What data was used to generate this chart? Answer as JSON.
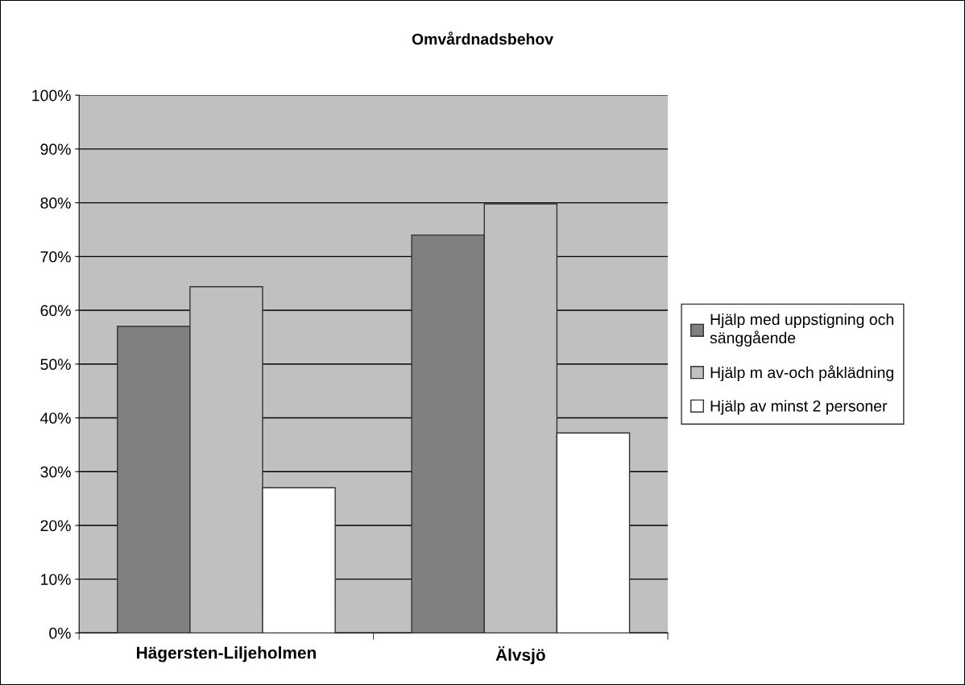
{
  "chart_data": {
    "type": "bar",
    "title": "Omvårdnadsbehov",
    "categories": [
      "Hägersten-Liljeholmen",
      "Älvsjö"
    ],
    "series": [
      {
        "name": "Hjälp med uppstigning och sänggående",
        "color": "#808080",
        "values": [
          57,
          74
        ]
      },
      {
        "name": "Hjälp m av-och påklädning",
        "color": "#c0c0c0",
        "values": [
          64.4,
          79.8
        ]
      },
      {
        "name": "Hjälp av minst 2 personer",
        "color": "#ffffff",
        "values": [
          27,
          37.2
        ]
      }
    ],
    "ylim": [
      0,
      100
    ],
    "yticks": [
      {
        "value": 0,
        "label": "0%"
      },
      {
        "value": 10,
        "label": "10%"
      },
      {
        "value": 20,
        "label": "20%"
      },
      {
        "value": 30,
        "label": "30%"
      },
      {
        "value": 40,
        "label": "40%"
      },
      {
        "value": 50,
        "label": "50%"
      },
      {
        "value": 60,
        "label": "60%"
      },
      {
        "value": 70,
        "label": "70%"
      },
      {
        "value": 80,
        "label": "80%"
      },
      {
        "value": 90,
        "label": "90%"
      },
      {
        "value": 100,
        "label": "100%"
      }
    ],
    "grid": "y",
    "legend": "right"
  }
}
